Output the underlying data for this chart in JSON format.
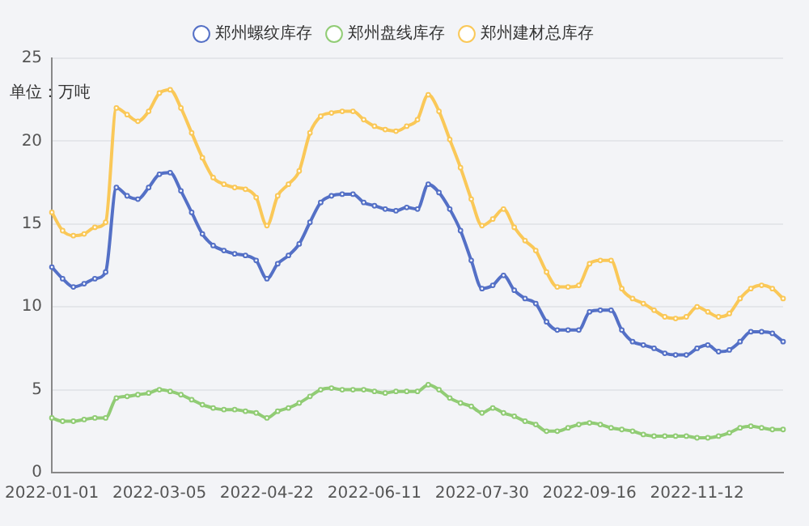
{
  "chart_data": {
    "type": "line",
    "ylabel": "单位：万吨",
    "categories": [
      "2022-01-01",
      null,
      null,
      null,
      null,
      null,
      null,
      null,
      null,
      null,
      "2022-03-05",
      null,
      null,
      null,
      null,
      null,
      null,
      null,
      null,
      null,
      "2022-04-22",
      null,
      null,
      null,
      null,
      null,
      null,
      null,
      null,
      null,
      "2022-06-11",
      null,
      null,
      null,
      null,
      null,
      null,
      null,
      null,
      null,
      "2022-07-30",
      null,
      null,
      null,
      null,
      null,
      null,
      null,
      null,
      null,
      "2022-09-16",
      null,
      null,
      null,
      null,
      null,
      null,
      null,
      null,
      null,
      "2022-11-12",
      null,
      null,
      null,
      null,
      null,
      null,
      null,
      null
    ],
    "series": [
      {
        "name": "郑州螺纹库存",
        "color": "#5470c6",
        "values": [
          12.4,
          11.7,
          11.2,
          11.4,
          11.7,
          12.1,
          17.2,
          16.7,
          16.5,
          17.2,
          18.0,
          18.1,
          17.0,
          15.7,
          14.4,
          13.7,
          13.4,
          13.2,
          13.1,
          12.8,
          11.7,
          12.6,
          13.1,
          13.8,
          15.1,
          16.3,
          16.7,
          16.8,
          16.8,
          16.3,
          16.1,
          15.9,
          15.8,
          16.0,
          15.9,
          17.4,
          16.9,
          15.9,
          14.6,
          12.8,
          11.1,
          11.3,
          11.9,
          11.0,
          10.5,
          10.2,
          9.1,
          8.6,
          8.6,
          8.6,
          9.7,
          9.8,
          9.8,
          8.6,
          7.9,
          7.7,
          7.5,
          7.2,
          7.1,
          7.1,
          7.5,
          7.7,
          7.3,
          7.4,
          7.9,
          8.5,
          8.5,
          8.4,
          7.9
        ]
      },
      {
        "name": "郑州盘线库存",
        "color": "#91cc75",
        "values": [
          3.3,
          3.1,
          3.1,
          3.2,
          3.3,
          3.3,
          4.5,
          4.6,
          4.7,
          4.8,
          5.0,
          4.9,
          4.7,
          4.4,
          4.1,
          3.9,
          3.8,
          3.8,
          3.7,
          3.6,
          3.3,
          3.7,
          3.9,
          4.2,
          4.6,
          5.0,
          5.1,
          5.0,
          5.0,
          5.0,
          4.9,
          4.8,
          4.9,
          4.9,
          4.9,
          5.3,
          5.0,
          4.5,
          4.2,
          4.0,
          3.6,
          3.9,
          3.6,
          3.4,
          3.1,
          2.9,
          2.5,
          2.5,
          2.7,
          2.9,
          3.0,
          2.9,
          2.7,
          2.6,
          2.5,
          2.3,
          2.2,
          2.2,
          2.2,
          2.2,
          2.1,
          2.1,
          2.2,
          2.4,
          2.7,
          2.8,
          2.7,
          2.6,
          2.6
        ]
      },
      {
        "name": "郑州建材总库存",
        "color": "#fac858",
        "values": [
          15.7,
          14.6,
          14.3,
          14.4,
          14.8,
          15.1,
          22.0,
          21.6,
          21.2,
          21.8,
          22.9,
          23.1,
          22.0,
          20.5,
          19.0,
          17.8,
          17.4,
          17.2,
          17.1,
          16.6,
          14.9,
          16.7,
          17.4,
          18.2,
          20.5,
          21.5,
          21.7,
          21.8,
          21.8,
          21.3,
          20.9,
          20.7,
          20.6,
          20.9,
          21.3,
          22.8,
          21.8,
          20.1,
          18.4,
          16.5,
          14.9,
          15.3,
          15.9,
          14.8,
          14.0,
          13.4,
          12.1,
          11.2,
          11.2,
          11.3,
          12.6,
          12.8,
          12.8,
          11.1,
          10.5,
          10.2,
          9.8,
          9.4,
          9.3,
          9.4,
          10.0,
          9.7,
          9.4,
          9.6,
          10.5,
          11.1,
          11.3,
          11.1,
          10.5
        ]
      }
    ],
    "ylim": [
      0,
      25
    ],
    "yticks": [
      0,
      5,
      10,
      15,
      20,
      25
    ],
    "grid": "y",
    "legend": "top",
    "marker": "circle",
    "line_style": "solid"
  }
}
